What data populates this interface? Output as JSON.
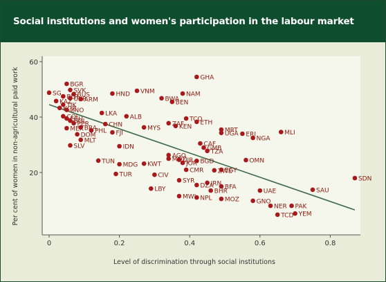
{
  "chart_data": {
    "type": "scatter",
    "title": "Social institutions and women's participation in the labour market",
    "xlabel": "Level of discrimination through social institutions",
    "ylabel": "Per cent of women in non-agricultural paid work",
    "xlim": [
      0,
      0.9
    ],
    "ylim": [
      0,
      60
    ],
    "xticks": [
      "0",
      "0.2",
      "0.4",
      "0.6",
      "0.8"
    ],
    "yticks": [
      "20",
      "40",
      "60"
    ],
    "grid": false,
    "legend": "none",
    "colors": {
      "point": "#a8191c",
      "label": "#8a1a10",
      "trend": "#3d6b4a",
      "background": "#e9ecd8",
      "header": "#0f4d2f"
    },
    "trendline": {
      "x": [
        0.0,
        0.87
      ],
      "y": [
        44.5,
        6.5
      ]
    },
    "points": [
      {
        "label": "GHA",
        "x": 0.42,
        "y": 54.5
      },
      {
        "label": "VNM",
        "x": 0.25,
        "y": 49.5
      },
      {
        "label": "HND",
        "x": 0.18,
        "y": 48.5
      },
      {
        "label": "NAM",
        "x": 0.38,
        "y": 48.5
      },
      {
        "label": "BWA",
        "x": 0.32,
        "y": 46.8
      },
      {
        "label": "BEN",
        "x": 0.35,
        "y": 45.5
      },
      {
        "label": "LKA",
        "x": 0.15,
        "y": 41.5
      },
      {
        "label": "ALB",
        "x": 0.22,
        "y": 40.3
      },
      {
        "label": "TCO",
        "x": 0.39,
        "y": 39.5
      },
      {
        "label": "ETH",
        "x": 0.42,
        "y": 38.3
      },
      {
        "label": "CHN",
        "x": 0.16,
        "y": 37.5
      },
      {
        "label": "FJI",
        "x": 0.18,
        "y": 34.5
      },
      {
        "label": "MYS",
        "x": 0.27,
        "y": 36.3
      },
      {
        "label": "ZAF",
        "x": 0.34,
        "y": 37.8
      },
      {
        "label": "KEN",
        "x": 0.36,
        "y": 36.8
      },
      {
        "label": "MRT",
        "x": 0.49,
        "y": 35.5
      },
      {
        "label": "UGA",
        "x": 0.49,
        "y": 34.3
      },
      {
        "label": "ERI",
        "x": 0.55,
        "y": 34.0
      },
      {
        "label": "NGA",
        "x": 0.58,
        "y": 32.5
      },
      {
        "label": "MLI",
        "x": 0.66,
        "y": 34.6
      },
      {
        "label": "DOM",
        "x": 0.08,
        "y": 33.8
      },
      {
        "label": "MLT",
        "x": 0.09,
        "y": 31.8
      },
      {
        "label": "SLV",
        "x": 0.06,
        "y": 29.8
      },
      {
        "label": "IDN",
        "x": 0.2,
        "y": 29.5
      },
      {
        "label": "CAF",
        "x": 0.43,
        "y": 30.5
      },
      {
        "label": "GMB",
        "x": 0.44,
        "y": 29.0
      },
      {
        "label": "TZA",
        "x": 0.45,
        "y": 27.8
      },
      {
        "label": "AGO",
        "x": 0.34,
        "y": 26.3
      },
      {
        "label": "MOZ",
        "x": 0.34,
        "y": 25.0
      },
      {
        "label": "UJR",
        "x": 0.37,
        "y": 24.6
      },
      {
        "label": "JOR",
        "x": 0.38,
        "y": 23.5
      },
      {
        "label": "BGD",
        "x": 0.42,
        "y": 24.2
      },
      {
        "label": "TUN",
        "x": 0.14,
        "y": 24.3
      },
      {
        "label": "MDG",
        "x": 0.2,
        "y": 23.0
      },
      {
        "label": "KWT",
        "x": 0.27,
        "y": 23.2
      },
      {
        "label": "OMN",
        "x": 0.56,
        "y": 24.5
      },
      {
        "label": "CMR",
        "x": 0.39,
        "y": 21.0
      },
      {
        "label": "ZWE",
        "x": 0.47,
        "y": 20.8
      },
      {
        "label": "EGY",
        "x": 0.49,
        "y": 21.0
      },
      {
        "label": "TUR",
        "x": 0.19,
        "y": 19.5
      },
      {
        "label": "CIV",
        "x": 0.3,
        "y": 19.2
      },
      {
        "label": "SYR",
        "x": 0.37,
        "y": 17.2
      },
      {
        "label": "IRN",
        "x": 0.45,
        "y": 16.3
      },
      {
        "label": "DZA",
        "x": 0.42,
        "y": 15.5
      },
      {
        "label": "BFA",
        "x": 0.49,
        "y": 15.0
      },
      {
        "label": "LBY",
        "x": 0.29,
        "y": 14.2
      },
      {
        "label": "BHR",
        "x": 0.46,
        "y": 13.5
      },
      {
        "label": "UAE",
        "x": 0.6,
        "y": 13.5
      },
      {
        "label": "SAU",
        "x": 0.75,
        "y": 13.8
      },
      {
        "label": "SDN",
        "x": 0.87,
        "y": 18.0
      },
      {
        "label": "MWI",
        "x": 0.37,
        "y": 11.5
      },
      {
        "label": "NPL",
        "x": 0.42,
        "y": 11.0
      },
      {
        "label": "MOZ",
        "x": 0.49,
        "y": 10.5
      },
      {
        "label": "GNO",
        "x": 0.58,
        "y": 9.8
      },
      {
        "label": "NER",
        "x": 0.63,
        "y": 8.0
      },
      {
        "label": "PAK",
        "x": 0.69,
        "y": 8.0
      },
      {
        "label": "YEM",
        "x": 0.7,
        "y": 5.2
      },
      {
        "label": "TCD",
        "x": 0.65,
        "y": 4.8
      },
      {
        "label": "SG",
        "x": 0.0,
        "y": 48.8
      },
      {
        "label": "BGR",
        "x": 0.05,
        "y": 52.0
      },
      {
        "label": "SVK",
        "x": 0.06,
        "y": 49.8
      },
      {
        "label": "BUS",
        "x": 0.07,
        "y": 48.3
      },
      {
        "label": "BLR",
        "x": 0.04,
        "y": 47.5
      },
      {
        "label": "UKR",
        "x": 0.06,
        "y": 46.8
      },
      {
        "label": "ARM",
        "x": 0.09,
        "y": 46.5
      },
      {
        "label": "KAZ",
        "x": 0.02,
        "y": 45.8
      },
      {
        "label": "TJK",
        "x": 0.04,
        "y": 44.5
      },
      {
        "label": "KGZ",
        "x": 0.03,
        "y": 43.3
      },
      {
        "label": "ZNO",
        "x": 0.05,
        "y": 42.6
      },
      {
        "label": "COL",
        "x": 0.04,
        "y": 40.3
      },
      {
        "label": "ECU",
        "x": 0.05,
        "y": 39.5
      },
      {
        "label": "BOL",
        "x": 0.06,
        "y": 38.7
      },
      {
        "label": "PER",
        "x": 0.07,
        "y": 37.8
      },
      {
        "label": "MEX",
        "x": 0.05,
        "y": 36.0
      },
      {
        "label": "BRA",
        "x": 0.09,
        "y": 36.3
      },
      {
        "label": "PHL",
        "x": 0.12,
        "y": 35.2
      }
    ]
  }
}
